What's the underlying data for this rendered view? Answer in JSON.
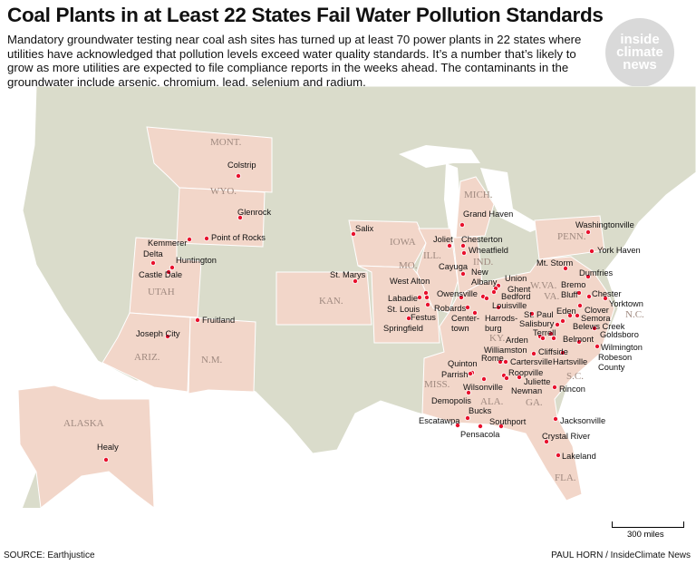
{
  "title": "Coal Plants in at Least 22 States Fail Water Pollution Standards",
  "dek": "Mandatory groundwater testing near coal ash sites has turned up at least 70 power plants in 22 states where utilities have acknowledged that pollution levels exceed water quality standards. It’s a number that’s likely to grow as more utilities are expected to file compliance reports in the weeks ahead. The contaminants in the groundwater include arsenic, chromium, lead, selenium and radium.",
  "logo": {
    "line1": "inside",
    "line2": "climate",
    "line3": "news"
  },
  "source": "SOURCE: Earthjustice",
  "credit": "PAUL HORN / InsideClimate News",
  "scale_label": "300 miles",
  "colors": {
    "affected_state": "#f2d6c9",
    "other_land": "#dadccb",
    "plant_dot": "#e8112d",
    "water": "#ffffff"
  },
  "states": [
    "MONT.",
    "WYO.",
    "UTAH",
    "ARIZ.",
    "N.M.",
    "ALASKA",
    "IOWA",
    "KAN.",
    "MO.",
    "ILL.",
    "IND.",
    "MICH.",
    "PENN.",
    "W.VA.",
    "VA.",
    "KY.",
    "N.C.",
    "S.C.",
    "GA.",
    "ALA.",
    "MISS.",
    "FLA."
  ],
  "plants": [
    "Colstrip",
    "Glenrock",
    "Kemmerer",
    "Point of Rocks",
    "Delta",
    "Huntington",
    "Castle Dale",
    "Joseph City",
    "Fruitland",
    "Healy",
    "Salix",
    "St. Marys",
    "Grand Haven",
    "Joliet",
    "Chesterton",
    "Wheatfield",
    "Cayuga",
    "New Albany",
    "Union",
    "Ghent",
    "Bedford",
    "Louisville",
    "Owensville",
    "West Alton",
    "Labadie",
    "St. Louis",
    "Festus",
    "Robards",
    "Center-town",
    "Harrods-burg",
    "Springfield",
    "St. Paul",
    "Mt. Storm",
    "Washingtonville",
    "York Haven",
    "Dumfries",
    "Bremo Bluff",
    "Chester",
    "Yorktown",
    "Clover",
    "Eden",
    "Semora",
    "Belews Creek",
    "Goldsboro",
    "Salisbury",
    "Terrell",
    "Belmont",
    "Arden",
    "Cliffside",
    "Williamston",
    "Hartsville",
    "Robeson County",
    "Wilmington",
    "Rome",
    "Cartersville",
    "Quinton",
    "Parrish",
    "Roopville",
    "Juliette",
    "Newnan",
    "Wilsonville",
    "Rincon",
    "Demopolis",
    "Bucks",
    "Escatawpa",
    "Pensacola",
    "Southport",
    "Jacksonville",
    "Crystal River",
    "Lakeland"
  ]
}
